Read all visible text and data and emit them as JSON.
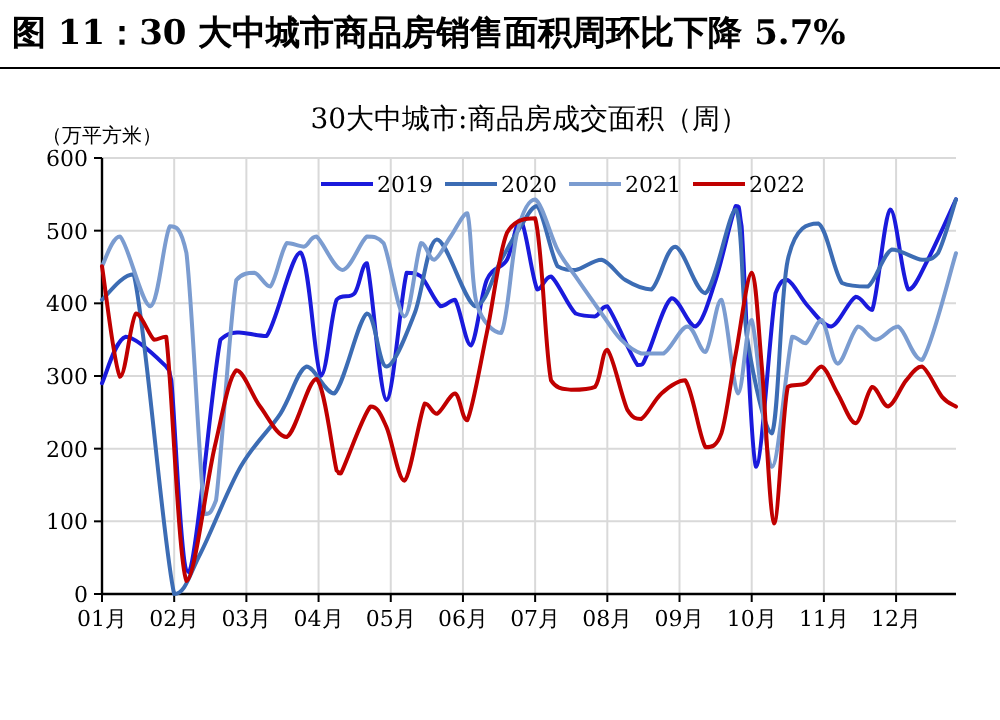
{
  "chart_data": {
    "type": "line",
    "title": "图 11：30 大中城市商品房销售面积周环比下降 5.7%",
    "subtitle": "30大中城市:商品房成交面积（周）",
    "ylabel": "（万平方米）",
    "xlim": [
      1,
      12.83
    ],
    "xticks": [
      {
        "value": 1,
        "label": "01月"
      },
      {
        "value": 2,
        "label": "02月"
      },
      {
        "value": 3,
        "label": "03月"
      },
      {
        "value": 4,
        "label": "04月"
      },
      {
        "value": 5,
        "label": "05月"
      },
      {
        "value": 6,
        "label": "06月"
      },
      {
        "value": 7,
        "label": "07月"
      },
      {
        "value": 8,
        "label": "08月"
      },
      {
        "value": 9,
        "label": "09月"
      },
      {
        "value": 10,
        "label": "10月"
      },
      {
        "value": 11,
        "label": "11月"
      },
      {
        "value": 12,
        "label": "12月"
      }
    ],
    "ylim": [
      0,
      600
    ],
    "yticks": [
      0,
      100,
      200,
      300,
      400,
      500,
      600
    ],
    "grid": true,
    "legend": "top",
    "marker": "none",
    "line_style": "solid",
    "series": [
      {
        "name": "2019",
        "color": "#1a1adc",
        "x": [
          1.0,
          1.33,
          1.89,
          1.96,
          2.2,
          2.64,
          2.9,
          3.28,
          3.75,
          4.03,
          4.25,
          4.5,
          4.67,
          4.94,
          5.22,
          5.42,
          5.69,
          5.89,
          6.11,
          6.33,
          6.61,
          6.8,
          7.03,
          7.22,
          7.56,
          7.83,
          8.0,
          8.42,
          8.56,
          8.89,
          9.22,
          9.5,
          9.78,
          9.86,
          10.06,
          10.33,
          10.5,
          10.78,
          11.1,
          11.44,
          11.67,
          11.92,
          12.17,
          12.44,
          12.83
        ],
        "values": [
          290,
          354,
          313,
          294,
          30,
          350,
          360,
          355,
          470,
          300,
          405,
          414,
          455,
          267,
          442,
          437,
          396,
          405,
          342,
          432,
          460,
          515,
          419,
          437,
          386,
          382,
          396,
          315,
          331,
          407,
          368,
          432,
          534,
          506,
          175,
          414,
          432,
          396,
          368,
          409,
          391,
          529,
          419,
          460,
          543
        ]
      },
      {
        "name": "2020",
        "color": "#3c6cb4",
        "x": [
          1.0,
          1.44,
          2.0,
          2.36,
          2.92,
          3.47,
          3.83,
          4.22,
          4.67,
          4.94,
          5.33,
          5.64,
          6.17,
          6.53,
          6.8,
          7.03,
          7.31,
          7.56,
          7.92,
          8.25,
          8.61,
          8.94,
          9.36,
          9.78,
          9.94,
          10.28,
          10.5,
          10.92,
          11.25,
          11.61,
          11.94,
          12.36,
          12.58,
          12.83
        ],
        "values": [
          405,
          440,
          0,
          55,
          175,
          248,
          313,
          276,
          386,
          313,
          386,
          488,
          396,
          460,
          506,
          534,
          451,
          446,
          460,
          432,
          419,
          478,
          414,
          529,
          350,
          221,
          460,
          510,
          428,
          423,
          474,
          460,
          469,
          543
        ]
      },
      {
        "name": "2021",
        "color": "#7b9cd0",
        "x": [
          1.0,
          1.25,
          1.67,
          1.94,
          2.17,
          2.42,
          2.58,
          2.86,
          3.11,
          3.33,
          3.56,
          3.8,
          3.97,
          4.33,
          4.67,
          4.9,
          5.19,
          5.42,
          5.6,
          5.83,
          6.06,
          6.19,
          6.53,
          6.75,
          7.0,
          7.31,
          7.56,
          7.92,
          8.19,
          8.47,
          8.78,
          9.11,
          9.36,
          9.58,
          9.81,
          10.0,
          10.28,
          10.56,
          10.75,
          10.97,
          11.19,
          11.47,
          11.72,
          12.03,
          12.36,
          12.83
        ],
        "values": [
          451,
          492,
          396,
          506,
          469,
          110,
          129,
          432,
          442,
          423,
          483,
          478,
          492,
          446,
          492,
          483,
          382,
          483,
          460,
          492,
          524,
          400,
          359,
          497,
          543,
          474,
          437,
          386,
          350,
          331,
          331,
          368,
          333,
          405,
          276,
          377,
          175,
          354,
          345,
          377,
          317,
          368,
          350,
          368,
          322,
          469
        ]
      },
      {
        "name": "2022",
        "color": "#c00000",
        "x": [
          1.0,
          1.25,
          1.47,
          1.72,
          1.89,
          2.17,
          2.56,
          2.86,
          3.19,
          3.56,
          3.97,
          4.25,
          4.31,
          4.72,
          4.94,
          5.19,
          5.47,
          5.64,
          5.89,
          6.06,
          6.33,
          6.61,
          7.0,
          7.22,
          7.5,
          7.83,
          8.0,
          8.28,
          8.47,
          8.75,
          9.08,
          9.36,
          9.58,
          9.78,
          10.0,
          10.14,
          10.31,
          10.5,
          10.75,
          10.97,
          11.19,
          11.44,
          11.67,
          11.89,
          12.14,
          12.36,
          12.64,
          12.83
        ],
        "values": [
          451,
          299,
          386,
          350,
          354,
          18,
          202,
          308,
          258,
          216,
          296,
          170,
          166,
          258,
          230,
          156,
          262,
          248,
          276,
          239,
          359,
          497,
          517,
          294,
          281,
          285,
          336,
          253,
          241,
          276,
          294,
          202,
          221,
          331,
          442,
          313,
          97,
          285,
          290,
          313,
          276,
          235,
          285,
          258,
          294,
          313,
          271,
          258
        ]
      }
    ]
  }
}
